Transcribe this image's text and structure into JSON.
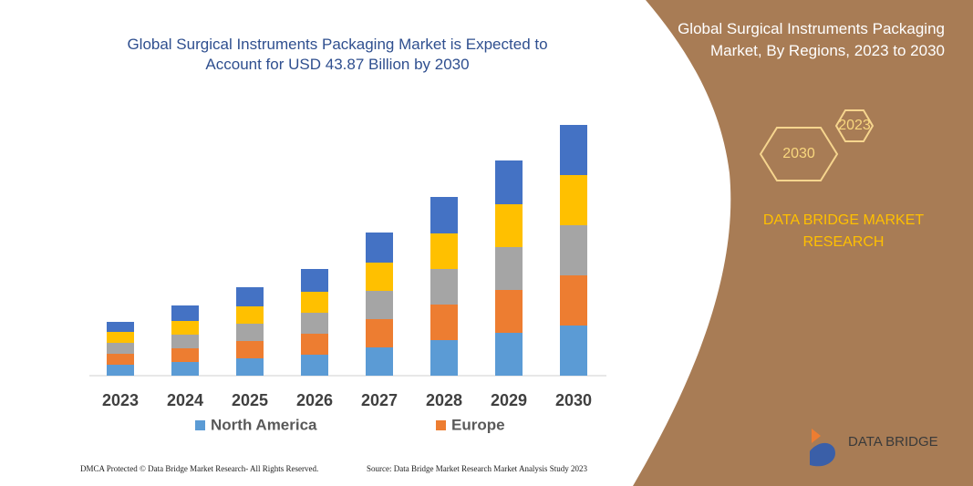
{
  "chart_data": {
    "type": "stacked-bar",
    "title": "Global Surgical Instruments Packaging Market is Expected to Account for USD 43.87 Billion by 2030",
    "categories": [
      "2023",
      "2024",
      "2025",
      "2026",
      "2027",
      "2028",
      "2029",
      "2030"
    ],
    "series": [
      {
        "name": "North America",
        "color": "#5b9bd5",
        "values": [
          12,
          15,
          19,
          23,
          31,
          39,
          47,
          55
        ]
      },
      {
        "name": "Europe",
        "color": "#ed7d31",
        "values": [
          12,
          15,
          19,
          23,
          31,
          39,
          47,
          55
        ]
      },
      {
        "color": "#a5a5a5",
        "values": [
          12,
          15,
          19,
          23,
          31,
          39,
          47,
          55
        ]
      },
      {
        "color": "#ffc000",
        "values": [
          12,
          15,
          19,
          23,
          31,
          39,
          47,
          55
        ]
      },
      {
        "color": "#4472c4",
        "values": [
          11,
          17,
          21,
          25,
          33,
          40,
          48,
          55
        ]
      }
    ]
  },
  "panel": {
    "title": "Global Surgical Instruments Packaging Market, By Regions, 2023 to 2030",
    "hex_start": "2023",
    "hex_end": "2030",
    "brand": "DATA BRIDGE MARKET RESEARCH",
    "logo": "DATA BRIDGE"
  },
  "footer": {
    "left": "DMCA Protected © Data Bridge Market Research- All Rights Reserved.",
    "right": "Source: Data Bridge Market Research Market Analysis Study 2023"
  }
}
